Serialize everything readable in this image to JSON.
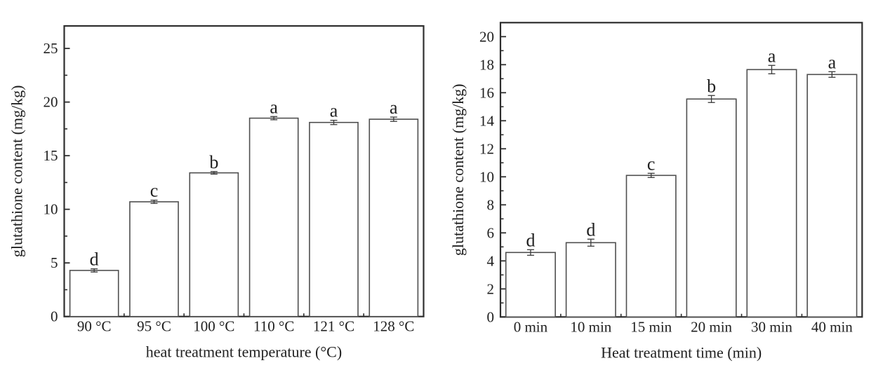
{
  "figure": {
    "background": "#ffffff",
    "text_color": "#1f1f1f",
    "frame_color": "#2e2e2e",
    "tick_color": "#2e2e2e",
    "bar_fill": "#ffffff",
    "bar_stroke": "#4f4f4f",
    "error_color": "#3a3a3a"
  },
  "chart_data": [
    {
      "type": "bar",
      "title": "",
      "categories": [
        "90 °C",
        "95 °C",
        "100 °C",
        "110 °C",
        "121 °C",
        "128 °C"
      ],
      "values": [
        4.3,
        10.7,
        13.4,
        18.5,
        18.1,
        18.4
      ],
      "errors": [
        0.15,
        0.15,
        0.12,
        0.15,
        0.2,
        0.2
      ],
      "sig_letters": [
        "d",
        "c",
        "b",
        "a",
        "a",
        "a"
      ],
      "xlabel": "heat treatment temperature (°C)",
      "ylabel": "glutathione content (mg/kg)",
      "ylim": [
        0,
        27.1
      ],
      "yticks": [
        0,
        5,
        10,
        15,
        20,
        25
      ],
      "yminor_step": 2.5,
      "bar_width_frac": 0.81,
      "grid": "off",
      "legend": "none"
    },
    {
      "type": "bar",
      "title": "",
      "categories": [
        "0 min",
        "10 min",
        "15 min",
        "20 min",
        "30 min",
        "40 min"
      ],
      "values": [
        4.6,
        5.3,
        10.1,
        15.55,
        17.65,
        17.3
      ],
      "errors": [
        0.2,
        0.25,
        0.15,
        0.25,
        0.3,
        0.2
      ],
      "sig_letters": [
        "d",
        "d",
        "c",
        "b",
        "a",
        "a"
      ],
      "xlabel": "Heat treatment time (min)",
      "ylabel": "glutathione content (mg/kg)",
      "ylim": [
        0,
        21
      ],
      "yticks": [
        0,
        2,
        4,
        6,
        8,
        10,
        12,
        14,
        16,
        18,
        20
      ],
      "yminor_step": 1,
      "bar_width_frac": 0.82,
      "grid": "off",
      "legend": "none"
    }
  ]
}
